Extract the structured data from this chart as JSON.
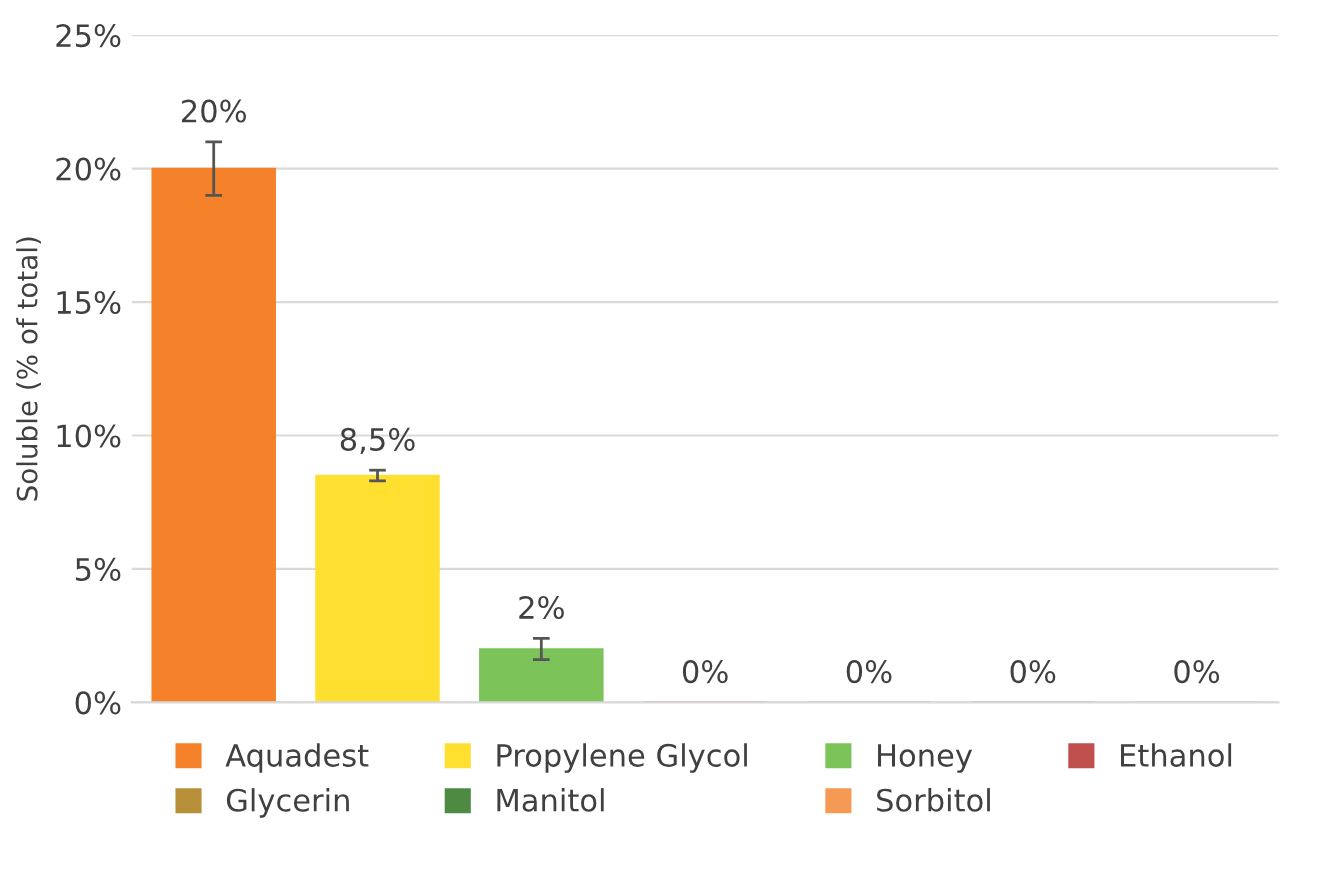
{
  "chart_data": {
    "type": "bar",
    "ylabel": "Soluble (% of total)",
    "categories": [
      null,
      null,
      null,
      null,
      null,
      null,
      null
    ],
    "series": [
      {
        "name": "Aquadest",
        "color": "#f5822a",
        "values": [
          20,
          null,
          null,
          null,
          null,
          null,
          null
        ],
        "errors": [
          1,
          null,
          null,
          null,
          null,
          null,
          null
        ],
        "value_labels": [
          "20%",
          null,
          null,
          null,
          null,
          null,
          null
        ]
      },
      {
        "name": "Propylene Glycol",
        "color": "#ffdf30",
        "values": [
          null,
          8.5,
          null,
          null,
          null,
          null,
          null
        ],
        "errors": [
          null,
          0.2,
          null,
          null,
          null,
          null,
          null
        ],
        "value_labels": [
          null,
          "8,5%",
          null,
          null,
          null,
          null,
          null
        ]
      },
      {
        "name": "Honey",
        "color": "#7cc45a",
        "values": [
          null,
          null,
          2,
          null,
          null,
          null,
          null
        ],
        "errors": [
          null,
          null,
          0.4,
          null,
          null,
          null,
          null
        ],
        "value_labels": [
          null,
          null,
          "2%",
          null,
          null,
          null,
          null
        ]
      },
      {
        "name": "Ethanol",
        "color": "#c0504d",
        "values": [
          null,
          null,
          null,
          0,
          null,
          null,
          null
        ],
        "value_labels": [
          null,
          null,
          null,
          "0%",
          null,
          null,
          null
        ]
      },
      {
        "name": "Glycerin",
        "color": "#b8903a",
        "values": [
          null,
          null,
          null,
          null,
          0,
          null,
          null
        ],
        "value_labels": [
          null,
          null,
          null,
          null,
          "0%",
          null,
          null
        ]
      },
      {
        "name": "Manitol",
        "color": "#4f8a43",
        "values": [
          null,
          null,
          null,
          null,
          null,
          0,
          null
        ],
        "value_labels": [
          null,
          null,
          null,
          null,
          null,
          "0%",
          null
        ]
      },
      {
        "name": "Sorbitol",
        "color": "#f59a55",
        "values": [
          null,
          null,
          null,
          null,
          null,
          null,
          0
        ],
        "value_labels": [
          null,
          null,
          null,
          null,
          null,
          null,
          "0%"
        ]
      }
    ],
    "ylim": [
      0,
      25
    ],
    "yticks": [
      {
        "value": 0,
        "label": "0%"
      },
      {
        "value": 5,
        "label": "5%"
      },
      {
        "value": 10,
        "label": "10%"
      },
      {
        "value": 15,
        "label": "15%"
      },
      {
        "value": 20,
        "label": "20%"
      },
      {
        "value": 25,
        "label": "25%"
      }
    ],
    "grid": "y",
    "legend": "bottom"
  }
}
